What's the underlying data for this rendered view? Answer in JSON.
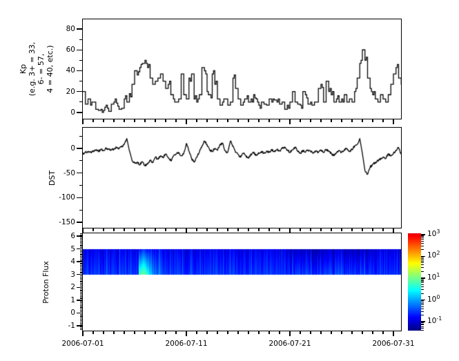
{
  "figure": {
    "background_color": "#ffffff",
    "axis_color": "#000000",
    "line_color": "#000000",
    "xaxis": {
      "tick_labels": [
        "2006-07-01",
        "2006-07-11",
        "2006-07-21",
        "2006-07-31"
      ],
      "tick_days": [
        0,
        10,
        20,
        30
      ],
      "minor_tick_interval_days": 1,
      "range_days": [
        0,
        30.73
      ]
    }
  },
  "chart_data": [
    {
      "id": "kp",
      "type": "line",
      "style": "step",
      "ylabel": "Kp\n(e.g. 3+ = 33,\n6- = 57,\n4 = 40, etc.)",
      "yticks": [
        0,
        20,
        40,
        60,
        80
      ],
      "ytick_labels": [
        "0",
        "20",
        "40",
        "60",
        "80"
      ],
      "yminor_interval": 10,
      "ylim": [
        -6,
        89.3
      ],
      "x_start_date": "2006-07-01",
      "points_per_day": 4,
      "values": [
        20,
        8,
        13,
        7,
        10,
        3,
        2,
        3,
        2,
        7,
        1,
        8,
        10,
        9,
        3,
        4,
        13,
        10,
        18,
        27,
        40,
        36,
        43,
        47,
        50,
        43,
        33,
        27,
        30,
        33,
        37,
        30,
        23,
        27,
        17,
        13,
        10,
        13,
        37,
        17,
        13,
        33,
        37,
        13,
        10,
        17,
        43,
        40,
        20,
        17,
        37,
        27,
        13,
        7,
        10,
        13,
        7,
        10,
        33,
        23,
        13,
        7,
        10,
        13,
        10,
        13,
        17,
        13,
        7,
        10,
        8,
        7,
        13,
        10,
        12,
        10,
        8,
        10,
        3,
        7,
        10,
        20,
        10,
        8,
        7,
        20,
        17,
        8,
        10,
        7,
        10,
        23,
        27,
        10,
        30,
        20,
        17,
        10,
        13,
        10,
        13,
        17,
        10,
        13,
        10,
        20,
        33,
        47,
        60,
        50,
        33,
        23,
        17,
        13,
        10,
        17,
        13,
        10,
        17,
        27,
        37,
        43,
        33,
        27
      ]
    },
    {
      "id": "dst",
      "type": "line",
      "style": "jagged",
      "ylabel": "DST",
      "yticks": [
        0,
        -50,
        -100,
        -150
      ],
      "ytick_labels": [
        "0",
        "-50",
        "-100",
        "-150"
      ],
      "yminor_interval": 25,
      "ylim": [
        -161,
        42
      ],
      "x_start_date": "2006-07-01",
      "points_per_day": 4,
      "values": [
        -12,
        -8,
        -6,
        -8,
        -5,
        -3,
        -6,
        -2,
        -4,
        0,
        -2,
        -3,
        -1,
        2,
        0,
        3,
        8,
        20,
        -5,
        -25,
        -30,
        -28,
        -33,
        -27,
        -35,
        -30,
        -25,
        -28,
        -18,
        -22,
        -15,
        -18,
        -12,
        -18,
        -25,
        -15,
        -12,
        -8,
        -15,
        -10,
        10,
        -5,
        -20,
        -28,
        -18,
        -8,
        5,
        15,
        8,
        -3,
        -6,
        0,
        -4,
        8,
        10,
        -5,
        -8,
        15,
        5,
        -8,
        -12,
        -18,
        -10,
        -15,
        -20,
        -12,
        -8,
        -14,
        -10,
        -6,
        -10,
        -5,
        -8,
        -3,
        -6,
        -2,
        -5,
        0,
        3,
        -3,
        -8,
        -3,
        2,
        -5,
        -10,
        -4,
        -8,
        -3,
        -6,
        -10,
        -5,
        -8,
        -4,
        -8,
        -2,
        -6,
        -10,
        -15,
        -8,
        -5,
        -8,
        -3,
        0,
        -6,
        -2,
        5,
        8,
        20,
        -10,
        -45,
        -52,
        -38,
        -32,
        -28,
        -25,
        -22,
        -18,
        -20,
        -12,
        -15,
        -10,
        -5,
        2,
        -12
      ]
    },
    {
      "id": "proton",
      "type": "heatmap",
      "ylabel": "Proton Flux",
      "yticks": [
        -1,
        0,
        1,
        2,
        3,
        4,
        5,
        6
      ],
      "ytick_labels": [
        "-1",
        "0",
        "1",
        "2",
        "3",
        "4",
        "5",
        "6"
      ],
      "yminor_interval": 0.1,
      "ylim": [
        -1.38,
        6.22
      ],
      "band_y_range": [
        3,
        5
      ],
      "base_log_flux_bottom": -0.5,
      "base_log_flux_top": -0.85,
      "event": {
        "description": "proton flux enhancement",
        "start_day": 5.33,
        "plateau_end_day": 6.1,
        "end_day": 8.4,
        "peak_log_flux": 0.9
      },
      "dark_interval_days": [
        20.5,
        27.5
      ]
    },
    {
      "id": "colorbar",
      "type": "colorbar",
      "scale": "log",
      "lim_log10": [
        -1.41,
        3.06
      ],
      "tick_labels": [
        {
          "base": "10",
          "exp": "3",
          "log10": 3
        },
        {
          "base": "10",
          "exp": "2",
          "log10": 2
        },
        {
          "base": "10",
          "exp": "1",
          "log10": 1
        },
        {
          "base": "10",
          "exp": "0",
          "log10": 0
        },
        {
          "base": "10",
          "exp": "-1",
          "log10": -1
        }
      ],
      "colormap": "jet",
      "colormap_hex": [
        "#000080",
        "#0000ff",
        "#00ffff",
        "#00ff00",
        "#ffff00",
        "#ff8000",
        "#ff0000",
        "#b00000"
      ]
    }
  ]
}
